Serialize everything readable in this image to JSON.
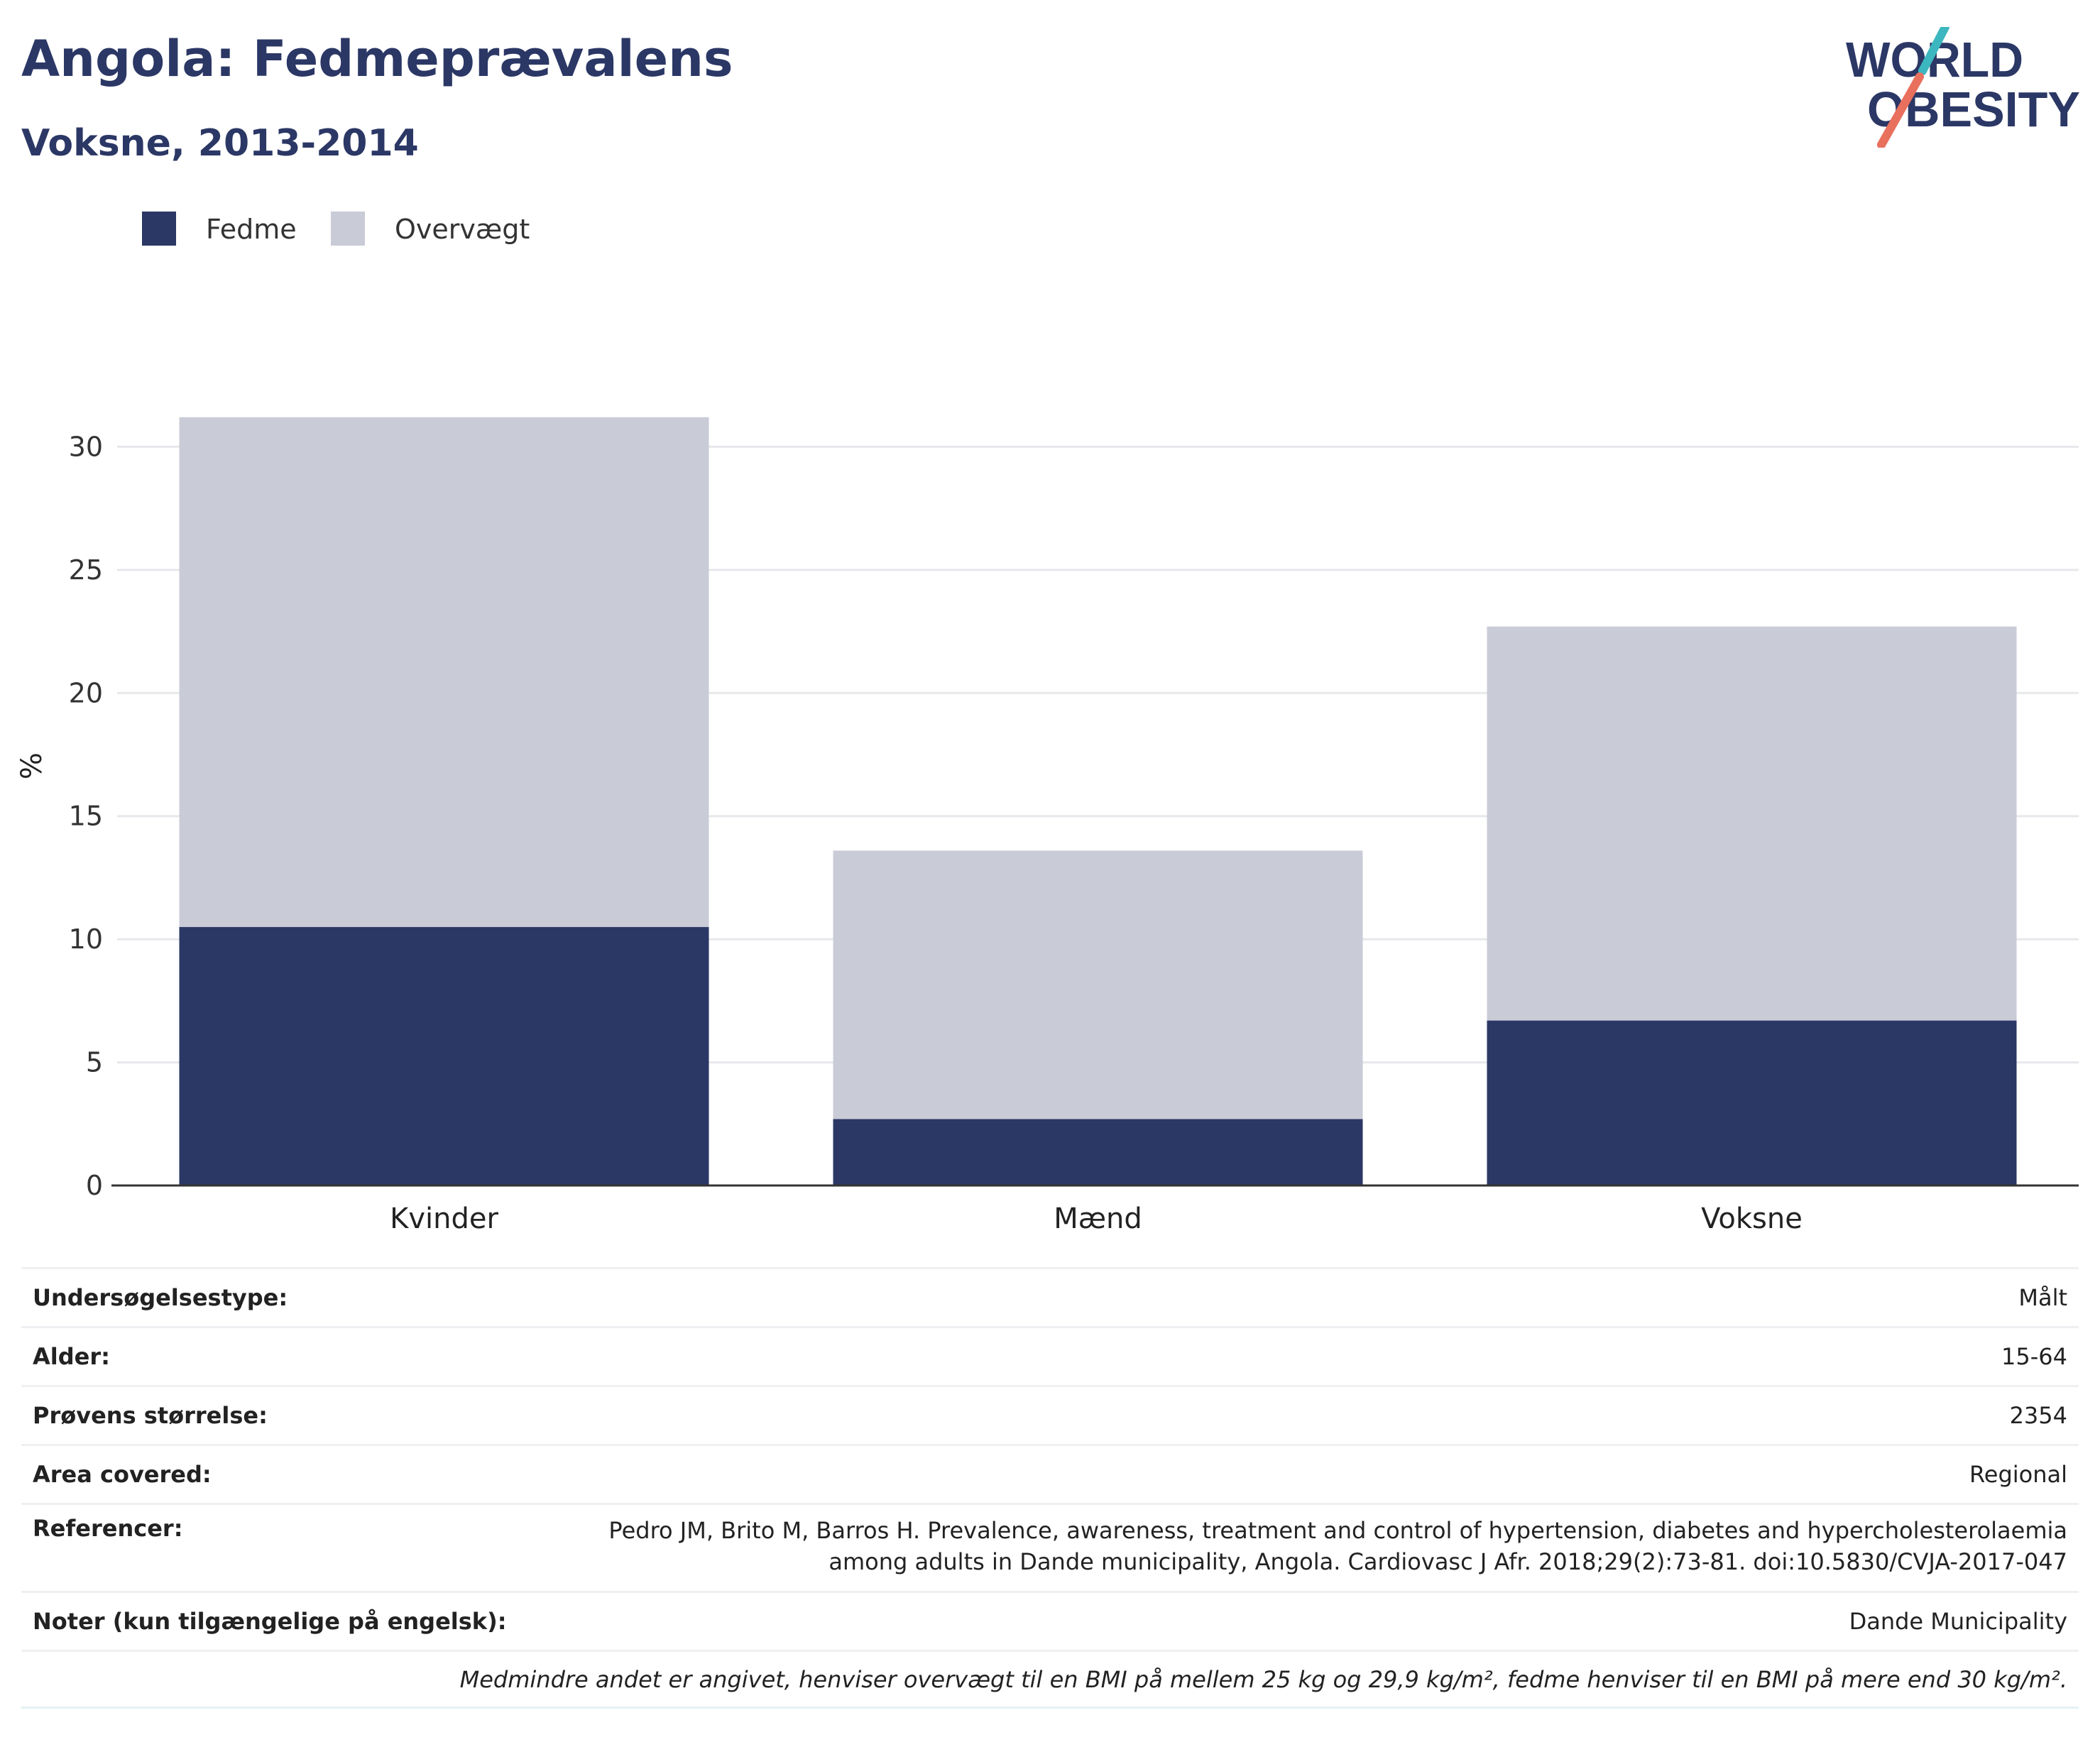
{
  "header": {
    "title": "Angola: Fedmeprævalens",
    "subtitle": "Voksne, 2013-2014"
  },
  "logo": {
    "line1": "WORLD",
    "line2": "OBESITY",
    "colors": {
      "text": "#2b3765",
      "slash_teal": "#3cb7bf",
      "slash_coral": "#e8705d"
    }
  },
  "colors": {
    "fedme": "#2b3765",
    "overvaegt": "#c9cbd7",
    "grid": "#e6e8eb",
    "axis": "#333333"
  },
  "chart_data": {
    "type": "bar",
    "stacked": true,
    "categories": [
      "Kvinder",
      "Mænd",
      "Voksne"
    ],
    "series": [
      {
        "name": "Fedme",
        "values": [
          10.5,
          2.7,
          6.7
        ]
      },
      {
        "name": "Overvægt",
        "values": [
          20.7,
          10.9,
          16.0
        ]
      }
    ],
    "ylabel": "%",
    "ylim": [
      0,
      32
    ],
    "yticks": [
      0,
      5,
      10,
      15,
      20,
      25,
      30
    ],
    "grid": true,
    "legend": "top-left"
  },
  "meta": {
    "rows": [
      {
        "key": "Undersøgelsestype:",
        "value": "Målt"
      },
      {
        "key": "Alder:",
        "value": "15-64"
      },
      {
        "key": "Prøvens størrelse:",
        "value": "2354"
      },
      {
        "key": "Area covered:",
        "value": "Regional"
      },
      {
        "key": "Referencer:",
        "value": "Pedro JM, Brito M, Barros H. Prevalence, awareness, treatment and control of hypertension, diabetes and hypercholesterolaemia among adults in Dande municipality, Angola. Cardiovasc J Afr. 2018;29(2):73-81. doi:10.5830/CVJA-2017-047"
      },
      {
        "key": "Noter (kun tilgængelige på engelsk):",
        "value": "Dande Municipality"
      }
    ],
    "note": "Medmindre andet er angivet, henviser overvægt til en BMI på mellem 25 kg og 29,9 kg/m², fedme henviser til en BMI på mere end 30 kg/m²."
  }
}
